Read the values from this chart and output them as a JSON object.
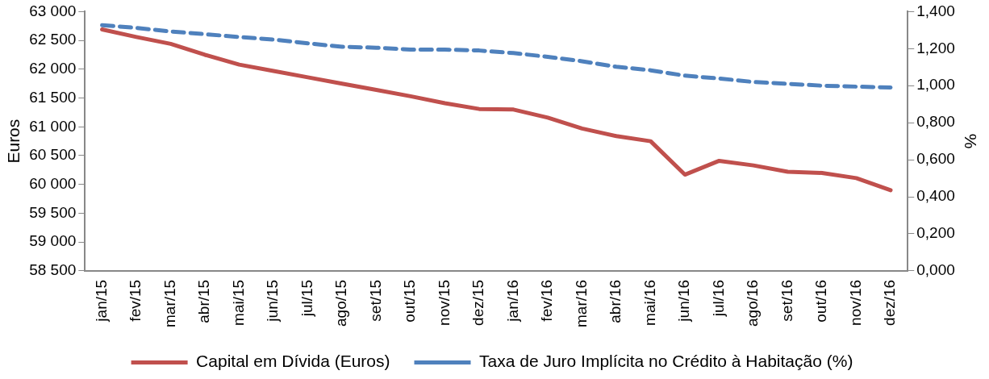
{
  "chart_data": {
    "type": "line",
    "ylabel": "Euros",
    "y2label": "%",
    "categories": [
      "jan/15",
      "fev/15",
      "mar/15",
      "abr/15",
      "mai/15",
      "jun/15",
      "jul/15",
      "ago/15",
      "set/15",
      "out/15",
      "nov/15",
      "dez/15",
      "jan/16",
      "fev/16",
      "mar/16",
      "abr/16",
      "mai/16",
      "jun/16",
      "jul/16",
      "ago/16",
      "set/16",
      "out/16",
      "nov/16",
      "dez/16"
    ],
    "series": [
      {
        "name": "Capital em Dívida (Euros)",
        "color": "#c0504d",
        "line_style": "solid",
        "values": [
          62690,
          62560,
          62440,
          62250,
          62080,
          61970,
          61860,
          61750,
          61640,
          61530,
          61410,
          61310,
          61300,
          61160,
          60970,
          60840,
          60750,
          60170,
          60410,
          60330,
          60220,
          60200,
          60110,
          59900
        ]
      },
      {
        "name": "Taxa de Juro Implícita no Crédito à Habitação (%)",
        "color": "#4f81bd",
        "line_style": "dashed",
        "axis": "y2",
        "values": [
          1.327,
          1.312,
          1.293,
          1.278,
          1.263,
          1.249,
          1.229,
          1.21,
          1.205,
          1.195,
          1.195,
          1.19,
          1.176,
          1.156,
          1.132,
          1.102,
          1.083,
          1.054,
          1.039,
          1.02,
          1.01,
          1.0,
          0.995,
          0.99
        ]
      }
    ],
    "ylim": [
      58500,
      63000
    ],
    "yticks": [
      {
        "value": 58500,
        "label": "58 500"
      },
      {
        "value": 59000,
        "label": "59 000"
      },
      {
        "value": 59500,
        "label": "59 500"
      },
      {
        "value": 60000,
        "label": "60 000"
      },
      {
        "value": 60500,
        "label": "60 500"
      },
      {
        "value": 61000,
        "label": "61 000"
      },
      {
        "value": 61500,
        "label": "61 500"
      },
      {
        "value": 62000,
        "label": "62 000"
      },
      {
        "value": 62500,
        "label": "62 500"
      },
      {
        "value": 63000,
        "label": "63 000"
      }
    ],
    "y2lim": [
      0,
      1.4
    ],
    "y2ticks": [
      {
        "value": 0,
        "label": "0,000"
      },
      {
        "value": 0.2,
        "label": "0,200"
      },
      {
        "value": 0.4,
        "label": "0,400"
      },
      {
        "value": 0.6,
        "label": "0,600"
      },
      {
        "value": 0.8,
        "label": "0,800"
      },
      {
        "value": 1.0,
        "label": "1,000"
      },
      {
        "value": 1.2,
        "label": "1,200"
      },
      {
        "value": 1.4,
        "label": "1,400"
      }
    ],
    "grid": false,
    "legend": "bottom",
    "marker": "none"
  }
}
